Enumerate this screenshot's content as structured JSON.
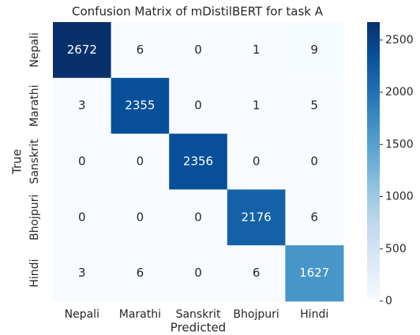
{
  "chart_data": {
    "type": "heatmap",
    "title": "Confusion Matrix of mDistilBERT for task A",
    "xlabel": "Predicted",
    "ylabel": "True",
    "x_categories": [
      "Nepali",
      "Marathi",
      "Sanskrit",
      "Bhojpuri",
      "Hindi"
    ],
    "y_categories": [
      "Nepali",
      "Marathi",
      "Sanskrit",
      "Bhojpuri",
      "Hindi"
    ],
    "values": [
      [
        2672,
        6,
        0,
        1,
        9
      ],
      [
        3,
        2355,
        0,
        1,
        5
      ],
      [
        0,
        0,
        2356,
        0,
        0
      ],
      [
        0,
        0,
        0,
        2176,
        6
      ],
      [
        3,
        6,
        0,
        6,
        1627
      ]
    ],
    "colormap": "Blues",
    "zlim": [
      0,
      2672
    ],
    "zticks": [
      0,
      500,
      1000,
      1500,
      2000,
      2500
    ]
  }
}
